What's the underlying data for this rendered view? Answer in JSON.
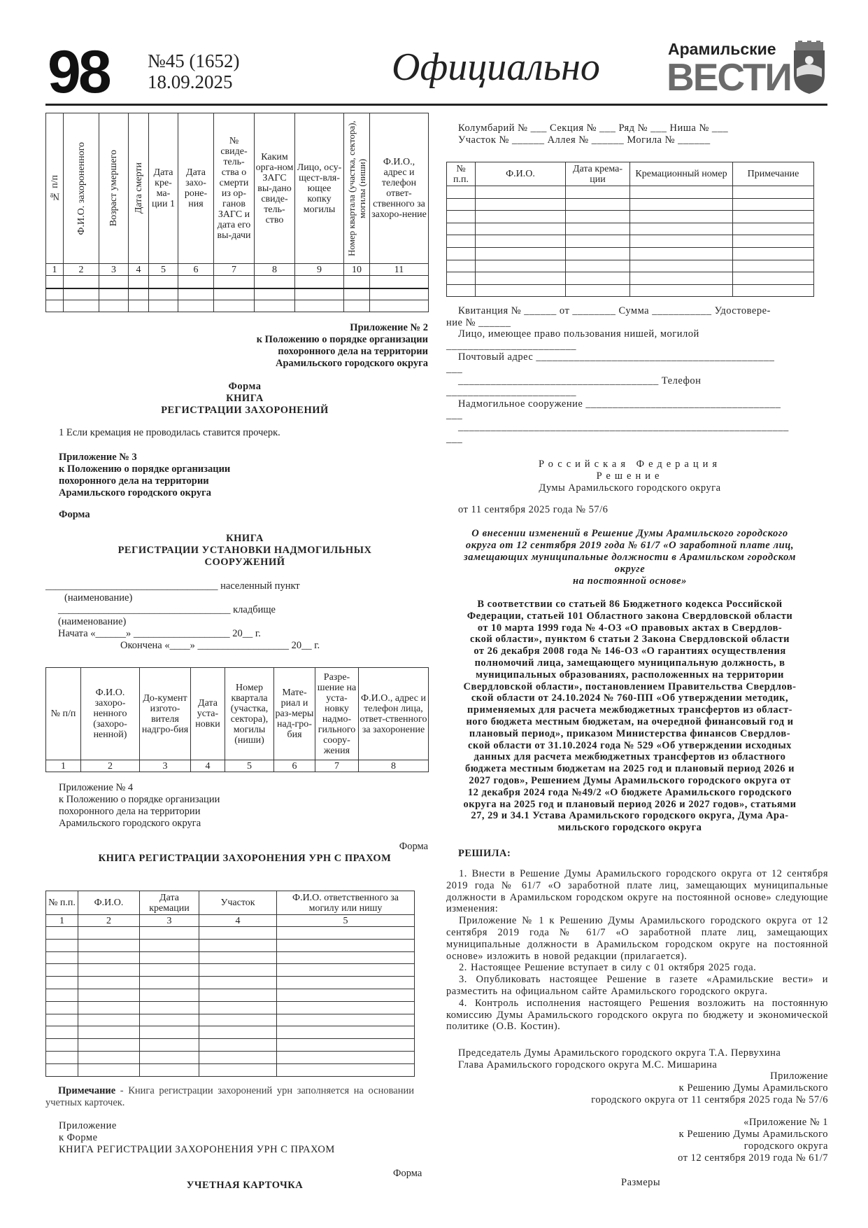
{
  "header": {
    "page_number": "98",
    "issue": "№45 (1652)",
    "date": "18.09.2025",
    "section": "Официально",
    "logo_top": "Арамильские",
    "logo_bottom": "ВЕСТИ",
    "emblem_icon": "coat-of-arms-icon"
  },
  "table1": {
    "headers": [
      "№ п/п",
      "Ф.И.О. захороненного",
      "Возраст умершего",
      "Дата смерти",
      "Дата кре-ма-ции 1",
      "Дата захо-роне-ния",
      "№ свиде-тель-ства о смерти из ор-ганов ЗАГС и дата его вы-дачи",
      "Каким орга-ном ЗАГС вы-дано свиде-тель-ство",
      "Лицо, осу-щест-вля-ющее копку могилы",
      "Номер квартала (участка, сектора), могилы (ниши)",
      "Ф.И.О., адрес и телефон ответ-ственного за захоро-нение"
    ],
    "numbers": [
      "1",
      "2",
      "3",
      "4",
      "5",
      "6",
      "7",
      "8",
      "9",
      "10",
      "11"
    ]
  },
  "appendix2": {
    "lines": [
      "Приложение № 2",
      "к Положению о порядке организации",
      "похоронного дела на территории",
      "Арамильского городского округа"
    ]
  },
  "form2": {
    "lines": [
      "Форма",
      "КНИГА",
      "РЕГИСТРАЦИИ ЗАХОРОНЕНИЙ"
    ],
    "footnote": "1 Если кремация не проводилась ставится прочерк."
  },
  "appendix3": {
    "lines": [
      "Приложение № 3",
      "к Положению о порядке организации",
      "похоронного дела на территории",
      "Арамильского городского округа"
    ],
    "form": "Форма",
    "title": [
      "КНИГА",
      "РЕГИСТРАЦИИ УСТАНОВКИ НАДМОГИЛЬНЫХ",
      "СООРУЖЕНИЙ"
    ],
    "fields": [
      "__________________________________ населенный пункт",
      "(наименование)",
      "__________________________________ кладбище",
      "(наименование)",
      "Начата «______» ___________________ 20__ г.",
      "Окончена «____» __________________ 20__ г."
    ]
  },
  "table3": {
    "headers": [
      "№ п/п",
      "Ф.И.О. захоро-ненного (захоро-ненной)",
      "До-кумент изгото-вителя надгро-бия",
      "Дата уста-новки",
      "Номер квартала (участка, сектора), могилы (ниши)",
      "Мате-риал и раз-меры над-гро-бия",
      "Разре-шение на уста-новку надмо-гильного соору-жения",
      "Ф.И.О., адрес и телефон лица, ответ-ственного за захоронение"
    ],
    "numbers": [
      "1",
      "2",
      "3",
      "4",
      "5",
      "6",
      "7",
      "8"
    ]
  },
  "appendix4": {
    "lines": [
      "Приложение № 4",
      "к Положению о порядке организации",
      "похоронного дела на территории",
      "Арамильского городского округа"
    ],
    "form": "Форма",
    "title": "КНИГА РЕГИСТРАЦИИ ЗАХОРОНЕНИЯ УРН С ПРАХОМ"
  },
  "table4": {
    "headers": [
      "№ п.п.",
      "Ф.И.О.",
      "Дата кремации",
      "Участок",
      "Ф.И.О. ответственного за могилу или нишу"
    ],
    "numbers": [
      "1",
      "2",
      "3",
      "4",
      "5"
    ]
  },
  "note": {
    "label": "Примечание",
    "text": " - Книга регистрации захоронений урн заполняется на основании учетных карточек."
  },
  "appendix_form": {
    "lines": [
      "Приложение",
      "к Форме",
      "КНИГА РЕГИСТРАЦИИ ЗАХОРОНЕНИЯ УРН С ПРАХОМ"
    ],
    "form": "Форма",
    "title": "УЧЕТНАЯ КАРТОЧКА"
  },
  "card": {
    "line1": "Колумбарий № ___ Секция № ___ Ряд № ___ Ниша № ___",
    "line2": "Участок № ______ Аллея № ______ Могила № ______",
    "table_headers": [
      "№ п.п.",
      "Ф.И.О.",
      "Дата крема-ции",
      "Кремационный номер",
      "Примечание"
    ],
    "fields": [
      "Квитанция № ______ от ________ Сумма ___________ Удостовере-",
      "ние № ______",
      "Лицо, имеющее право пользования нишей, могилой",
      "________________________",
      "Почтовый адрес ____________________________________________",
      "___",
      "_____________________________________ Телефон",
      "________________________",
      "Надмогильное сооружение ____________________________________",
      "___",
      "_____________________________________________________________",
      "___"
    ]
  },
  "decision": {
    "country": "Российская Федерация",
    "kind": "Решение",
    "body": "Думы Арамильского городского округа",
    "date": "от 11 сентября 2025 года № 57/6",
    "title": [
      "О внесении изменений в Решение Думы Арамильского городского",
      "округа от 12 сентября 2019 года № 61/7 «О заработной плате лиц,",
      "замещающих муниципальные должности в Арамильском городском",
      "округе",
      "на постоянной основе»"
    ],
    "preamble": [
      "В соответствии со статьей 86 Бюджетного кодекса Российской",
      "Федерации, статьей 101 Областного закона Свердловской области",
      "от 10 марта 1999 года № 4-ОЗ «О правовых актах в Свердлов-",
      "ской области», пунктом 6 статьи 2 Закона Свердловской области",
      "от 26 декабря 2008 года № 146-ОЗ «О гарантиях осуществления",
      "полномочий лица, замещающего муниципальную должность, в",
      "муниципальных образованиях, расположенных на территории",
      "Свердловской области», постановлением Правительства Свердлов-",
      "ской области от 24.10.2024 № 760-ПП «Об утверждении методик,",
      "применяемых для расчета межбюджетных трансфертов из област-",
      "ного бюджета местным бюджетам, на очередной финансовый год и",
      "плановый период», приказом Министерства финансов Свердлов-",
      "ской области от 31.10.2024 года № 529 «Об утверждении исходных",
      "данных для расчета межбюджетных трансфертов из областного",
      "бюджета местным бюджетам на 2025 год и плановый период 2026 и",
      "2027 годов», Решением Думы Арамильского городского округа от",
      "12 декабря 2024 года №49/2 «О бюджете Арамильского городского",
      "округа на 2025 год и плановый период 2026 и 2027 годов», статьями",
      "27, 29 и 34.1 Устава Арамильского городского округа, Дума Ара-",
      "мильского городского округа"
    ],
    "resolved": "РЕШИЛА:",
    "items": [
      "1. Внести в Решение Думы Арамильского городского округа от 12 сентября 2019 года № 61/7 «О заработной плате лиц, замещающих муниципальные должности в Арамильском городском округе на постоянной основе» следующие изменения:",
      "Приложение № 1 к Решению Думы Арамильского городского округа от 12 сентября 2019 года № 61/7 «О заработной плате лиц, замещающих муниципальные должности в Арамильском городском округе на постоянной основе» изложить в новой редакции (прилагается).",
      "2. Настоящее Решение вступает в силу с 01 октября 2025 года.",
      "3. Опубликовать настоящее Решение в газете «Арамильские вести» и разместить на официальном сайте Арамильского городского округа.",
      "4. Контроль исполнения настоящего Решения возложить на постоянную комиссию Думы Арамильского городского округа по бюджету и экономической политике (О.В. Костин)."
    ],
    "signatures": [
      "Председатель Думы Арамильского городского округа Т.А. Первухина",
      "Глава Арамильского городского округа  М.С. Мишарина"
    ],
    "annex": [
      "Приложение",
      "к Решению Думы Арамильского",
      "городского округа от 11 сентября 2025 года № 57/6"
    ],
    "annex_old": [
      "«Приложение № 1",
      "к Решению Думы Арамильского",
      "городского округа",
      "от 12 сентября 2019 года № 61/7"
    ],
    "sizes": "Размеры"
  }
}
